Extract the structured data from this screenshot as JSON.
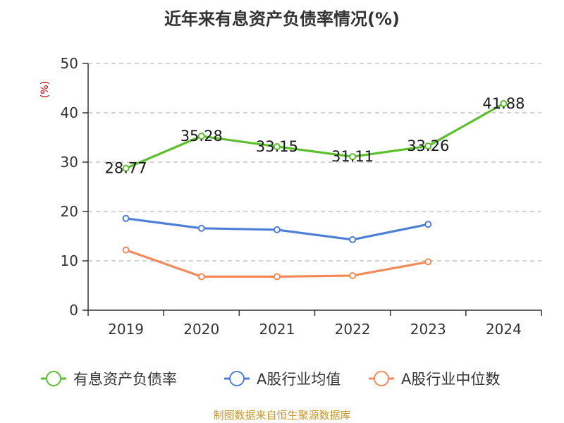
{
  "chart_data": {
    "type": "line",
    "title": "近年来有息资产负债率情况(%)",
    "ylabel": "(%)",
    "xlabel": "",
    "categories": [
      "2019",
      "2020",
      "2021",
      "2022",
      "2023",
      "2024"
    ],
    "ylim": [
      0,
      50
    ],
    "yticks": [
      0,
      10,
      20,
      30,
      40,
      50
    ],
    "grid": true,
    "legend_position": "bottom",
    "series": [
      {
        "name": "有息资产负债率",
        "color": "#5cc02d",
        "values": [
          28.77,
          35.28,
          33.15,
          31.11,
          33.26,
          41.88
        ],
        "labels": [
          "28.77",
          "35.28",
          "33.15",
          "31.11",
          "33.26",
          "41.88"
        ]
      },
      {
        "name": "A股行业均值",
        "color": "#4e7fd6",
        "values": [
          18.6,
          16.6,
          16.3,
          14.3,
          17.4,
          null
        ]
      },
      {
        "name": "A股行业中位数",
        "color": "#f28a5a",
        "values": [
          12.2,
          6.8,
          6.8,
          7.0,
          9.8,
          null
        ]
      }
    ]
  },
  "source": "制图数据来自恒生聚源数据库",
  "colors": {
    "axis": "#333333",
    "grid": "#bbbbbb",
    "unit": "#cc0000",
    "source": "#c8962b"
  }
}
